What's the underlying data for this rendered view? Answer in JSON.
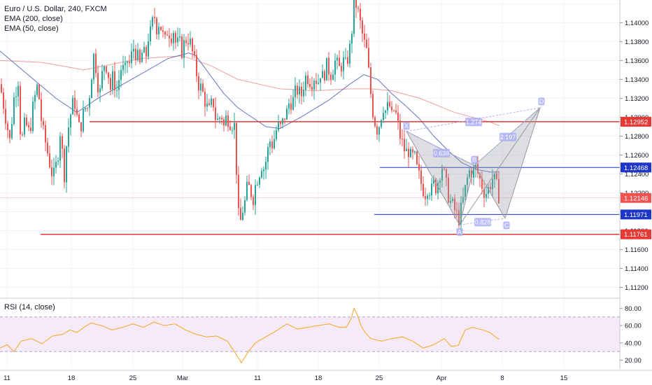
{
  "header": {
    "title": "Euro / U.S. Dollar, 240, FXCM",
    "ema200": "EMA (200, close)",
    "ema50": "EMA (50, close)",
    "rsi": "RSI (14, close)"
  },
  "colors": {
    "up": "#26a69a",
    "down": "#ef5350",
    "ema200": "#e57373",
    "ema50": "#3f51b5",
    "red_level": "#e53935",
    "blue_level": "#1e35c8",
    "pattern": "#9598a1",
    "label_bg": "#aaaef5",
    "rsi": "#f5a623",
    "rsi_band": "#f3e5f5"
  },
  "chart_data": [
    {
      "type": "candlestick",
      "title": "Euro / U.S. Dollar, 240, FXCM",
      "ylim": [
        1.111,
        1.1424
      ],
      "yticks": [
        1.112,
        1.114,
        1.116,
        1.118,
        1.12,
        1.122,
        1.124,
        1.126,
        1.128,
        1.13,
        1.132,
        1.134,
        1.136,
        1.138,
        1.14,
        1.142
      ],
      "x_ticks": [
        "11",
        "18",
        "25",
        "Mar",
        "11",
        "18",
        "25",
        "Apr",
        "8",
        "15"
      ],
      "path": [
        [
          0,
          1.1335
        ],
        [
          7,
          1.1305
        ],
        [
          14,
          1.1275
        ],
        [
          20,
          1.132
        ],
        [
          26,
          1.134
        ],
        [
          30,
          1.127
        ],
        [
          36,
          1.1295
        ],
        [
          42,
          1.1282
        ],
        [
          48,
          1.1315
        ],
        [
          54,
          1.1335
        ],
        [
          60,
          1.129
        ],
        [
          66,
          1.127
        ],
        [
          70,
          1.1255
        ],
        [
          76,
          1.1235
        ],
        [
          82,
          1.1255
        ],
        [
          86,
          1.1285
        ],
        [
          92,
          1.124
        ],
        [
          96,
          1.128
        ],
        [
          100,
          1.13
        ],
        [
          106,
          1.132
        ],
        [
          110,
          1.13
        ],
        [
          114,
          1.1285
        ],
        [
          118,
          1.13
        ],
        [
          122,
          1.131
        ],
        [
          126,
          1.131
        ],
        [
          130,
          1.134
        ],
        [
          134,
          1.1365
        ],
        [
          138,
          1.135
        ],
        [
          142,
          1.132
        ],
        [
          146,
          1.1345
        ],
        [
          150,
          1.136
        ],
        [
          154,
          1.135
        ],
        [
          158,
          1.133
        ],
        [
          162,
          1.1345
        ],
        [
          166,
          1.1325
        ],
        [
          170,
          1.134
        ],
        [
          174,
          1.1355
        ],
        [
          178,
          1.1345
        ],
        [
          182,
          1.136
        ],
        [
          186,
          1.1355
        ],
        [
          190,
          1.1375
        ],
        [
          196,
          1.1365
        ],
        [
          200,
          1.1355
        ],
        [
          204,
          1.1372
        ],
        [
          208,
          1.136
        ],
        [
          212,
          1.1385
        ],
        [
          216,
          1.139
        ],
        [
          220,
          1.141
        ],
        [
          224,
          1.1395
        ],
        [
          228,
          1.1402
        ],
        [
          232,
          1.1388
        ],
        [
          236,
          1.138
        ],
        [
          240,
          1.1395
        ],
        [
          244,
          1.1385
        ],
        [
          248,
          1.1392
        ],
        [
          252,
          1.1375
        ],
        [
          256,
          1.138
        ],
        [
          260,
          1.137
        ],
        [
          264,
          1.138
        ],
        [
          268,
          1.1385
        ],
        [
          272,
          1.1378
        ],
        [
          276,
          1.1365
        ],
        [
          280,
          1.135
        ],
        [
          284,
          1.1335
        ],
        [
          288,
          1.133
        ],
        [
          292,
          1.132
        ],
        [
          296,
          1.131
        ],
        [
          300,
          1.1305
        ],
        [
          304,
          1.132
        ],
        [
          308,
          1.13
        ],
        [
          312,
          1.1295
        ],
        [
          316,
          1.1305
        ],
        [
          320,
          1.129
        ],
        [
          324,
          1.1302
        ],
        [
          328,
          1.1296
        ],
        [
          332,
          1.1294
        ],
        [
          336,
          1.129
        ],
        [
          340,
          1.12
        ],
        [
          343,
          1.1185
        ],
        [
          346,
          1.12
        ],
        [
          350,
          1.121
        ],
        [
          354,
          1.1228
        ],
        [
          358,
          1.1222
        ],
        [
          362,
          1.1215
        ],
        [
          366,
          1.1232
        ],
        [
          370,
          1.124
        ],
        [
          374,
          1.125
        ],
        [
          378,
          1.1245
        ],
        [
          382,
          1.1262
        ],
        [
          386,
          1.1275
        ],
        [
          390,
          1.127
        ],
        [
          394,
          1.1285
        ],
        [
          398,
          1.129
        ],
        [
          402,
          1.1288
        ],
        [
          406,
          1.13
        ],
        [
          410,
          1.1305
        ],
        [
          414,
          1.1318
        ],
        [
          418,
          1.1315
        ],
        [
          422,
          1.1325
        ],
        [
          426,
          1.133
        ],
        [
          430,
          1.132
        ],
        [
          434,
          1.1335
        ],
        [
          438,
          1.1345
        ],
        [
          442,
          1.134
        ],
        [
          446,
          1.1338
        ],
        [
          450,
          1.1345
        ],
        [
          454,
          1.1335
        ],
        [
          458,
          1.1348
        ],
        [
          462,
          1.134
        ],
        [
          466,
          1.1355
        ],
        [
          470,
          1.135
        ],
        [
          474,
          1.1345
        ],
        [
          478,
          1.136
        ],
        [
          482,
          1.1355
        ],
        [
          486,
          1.135
        ],
        [
          490,
          1.136
        ],
        [
          494,
          1.1355
        ],
        [
          498,
          1.1365
        ],
        [
          502,
          1.138
        ],
        [
          505,
          1.1418
        ],
        [
          508,
          1.1422
        ],
        [
          512,
          1.141
        ],
        [
          516,
          1.1395
        ],
        [
          520,
          1.138
        ],
        [
          524,
          1.137
        ],
        [
          528,
          1.134
        ],
        [
          532,
          1.131
        ],
        [
          536,
          1.1295
        ],
        [
          540,
          1.1285
        ],
        [
          544,
          1.13
        ],
        [
          548,
          1.1312
        ],
        [
          552,
          1.1305
        ],
        [
          556,
          1.1315
        ],
        [
          560,
          1.13
        ],
        [
          564,
          1.131
        ],
        [
          568,
          1.1295
        ],
        [
          572,
          1.128
        ],
        [
          576,
          1.127
        ],
        [
          580,
          1.1262
        ],
        [
          584,
          1.1265
        ],
        [
          588,
          1.1255
        ],
        [
          592,
          1.126
        ],
        [
          596,
          1.1245
        ],
        [
          600,
          1.1235
        ],
        [
          604,
          1.1225
        ],
        [
          608,
          1.122
        ],
        [
          612,
          1.1228
        ],
        [
          616,
          1.122
        ],
        [
          620,
          1.123
        ],
        [
          624,
          1.1225
        ],
        [
          628,
          1.124
        ],
        [
          632,
          1.1248
        ],
        [
          636,
          1.1235
        ],
        [
          640,
          1.122
        ],
        [
          644,
          1.121
        ],
        [
          648,
          1.1205
        ],
        [
          652,
          1.1198
        ],
        [
          656,
          1.1193
        ],
        [
          660,
          1.1205
        ],
        [
          664,
          1.122
        ],
        [
          668,
          1.1235
        ],
        [
          672,
          1.1245
        ],
        [
          676,
          1.124
        ],
        [
          680,
          1.1247
        ],
        [
          684,
          1.1238
        ],
        [
          688,
          1.123
        ],
        [
          692,
          1.1222
        ],
        [
          696,
          1.122
        ],
        [
          700,
          1.1228
        ],
        [
          704,
          1.1235
        ],
        [
          708,
          1.1232
        ],
        [
          712,
          1.122
        ],
        [
          714,
          1.1215
        ]
      ],
      "ema200_path": [
        [
          0,
          1.136
        ],
        [
          60,
          1.1358
        ],
        [
          120,
          1.135
        ],
        [
          200,
          1.1362
        ],
        [
          260,
          1.1365
        ],
        [
          300,
          1.1355
        ],
        [
          340,
          1.134
        ],
        [
          400,
          1.133
        ],
        [
          450,
          1.1328
        ],
        [
          500,
          1.133
        ],
        [
          530,
          1.133
        ],
        [
          560,
          1.1328
        ],
        [
          600,
          1.132
        ],
        [
          650,
          1.1305
        ],
        [
          700,
          1.1295
        ],
        [
          714,
          1.1291
        ]
      ],
      "ema50_path": [
        [
          0,
          1.137
        ],
        [
          40,
          1.1345
        ],
        [
          80,
          1.132
        ],
        [
          110,
          1.1305
        ],
        [
          140,
          1.132
        ],
        [
          200,
          1.1345
        ],
        [
          240,
          1.1362
        ],
        [
          270,
          1.1368
        ],
        [
          280,
          1.1365
        ],
        [
          300,
          1.1345
        ],
        [
          320,
          1.1325
        ],
        [
          340,
          1.131
        ],
        [
          380,
          1.129
        ],
        [
          400,
          1.1288
        ],
        [
          430,
          1.13
        ],
        [
          470,
          1.1318
        ],
        [
          500,
          1.1335
        ],
        [
          520,
          1.1345
        ],
        [
          540,
          1.134
        ],
        [
          560,
          1.1325
        ],
        [
          580,
          1.1312
        ],
        [
          600,
          1.1298
        ],
        [
          620,
          1.128
        ],
        [
          640,
          1.1265
        ],
        [
          660,
          1.1252
        ],
        [
          680,
          1.1245
        ],
        [
          700,
          1.1242
        ],
        [
          714,
          1.1242
        ]
      ],
      "levels": [
        {
          "name": "resistance-1.12952",
          "value": 1.12952,
          "label": "1.12952",
          "kind": "red"
        },
        {
          "name": "level-1.12468",
          "value": 1.12468,
          "label": "1.12468",
          "kind": "blue"
        },
        {
          "name": "level-1.11971",
          "value": 1.11971,
          "label": "1.11971",
          "kind": "blue"
        },
        {
          "name": "support-1.11761",
          "value": 1.11761,
          "label": "1.11761",
          "kind": "red"
        },
        {
          "name": "last-price",
          "value": 1.12146,
          "label": "1.12146",
          "kind": "last"
        }
      ],
      "pattern": {
        "points": [
          {
            "label": "X",
            "x": 581,
            "y": 1.1285
          },
          {
            "label": "A",
            "x": 657,
            "y": 1.1186
          },
          {
            "label": "B",
            "x": 678,
            "y": 1.1249
          },
          {
            "label": "C",
            "x": 722,
            "y": 1.1193
          },
          {
            "label": "D",
            "x": 772,
            "y": 1.131
          }
        ],
        "ratios": [
          {
            "label": "0.639",
            "x": 631,
            "y": 1.1262
          },
          {
            "label": "0.828",
            "x": 690,
            "y": 1.1189
          },
          {
            "label": "1.274",
            "x": 677,
            "y": 1.1295
          },
          {
            "label": "2.197",
            "x": 726,
            "y": 1.1279
          }
        ]
      }
    },
    {
      "type": "line",
      "title": "RSI (14, close)",
      "ylim": [
        10,
        90
      ],
      "yticks": [
        20,
        40,
        60,
        80
      ],
      "band": [
        30,
        70
      ],
      "x_ticks": [
        "11",
        "18",
        "25",
        "Mar",
        "11",
        "18",
        "25",
        "Apr",
        "8",
        "15"
      ],
      "values": [
        [
          0,
          34
        ],
        [
          10,
          38
        ],
        [
          20,
          30
        ],
        [
          30,
          42
        ],
        [
          45,
          45
        ],
        [
          60,
          39
        ],
        [
          75,
          48
        ],
        [
          90,
          50
        ],
        [
          100,
          55
        ],
        [
          110,
          52
        ],
        [
          120,
          58
        ],
        [
          130,
          63
        ],
        [
          145,
          60
        ],
        [
          160,
          55
        ],
        [
          175,
          58
        ],
        [
          190,
          62
        ],
        [
          205,
          58
        ],
        [
          220,
          64
        ],
        [
          235,
          60
        ],
        [
          250,
          62
        ],
        [
          265,
          55
        ],
        [
          280,
          50
        ],
        [
          295,
          47
        ],
        [
          310,
          48
        ],
        [
          325,
          42
        ],
        [
          335,
          30
        ],
        [
          345,
          17
        ],
        [
          355,
          30
        ],
        [
          365,
          40
        ],
        [
          380,
          47
        ],
        [
          395,
          54
        ],
        [
          410,
          62
        ],
        [
          425,
          56
        ],
        [
          440,
          58
        ],
        [
          455,
          60
        ],
        [
          470,
          62
        ],
        [
          485,
          58
        ],
        [
          495,
          58
        ],
        [
          502,
          68
        ],
        [
          506,
          80
        ],
        [
          510,
          74
        ],
        [
          516,
          60
        ],
        [
          522,
          52
        ],
        [
          530,
          45
        ],
        [
          545,
          42
        ],
        [
          560,
          45
        ],
        [
          575,
          47
        ],
        [
          590,
          42
        ],
        [
          605,
          34
        ],
        [
          620,
          38
        ],
        [
          635,
          45
        ],
        [
          645,
          36
        ],
        [
          655,
          37
        ],
        [
          665,
          55
        ],
        [
          675,
          58
        ],
        [
          690,
          55
        ],
        [
          700,
          52
        ],
        [
          710,
          46
        ],
        [
          714,
          44
        ]
      ]
    }
  ]
}
